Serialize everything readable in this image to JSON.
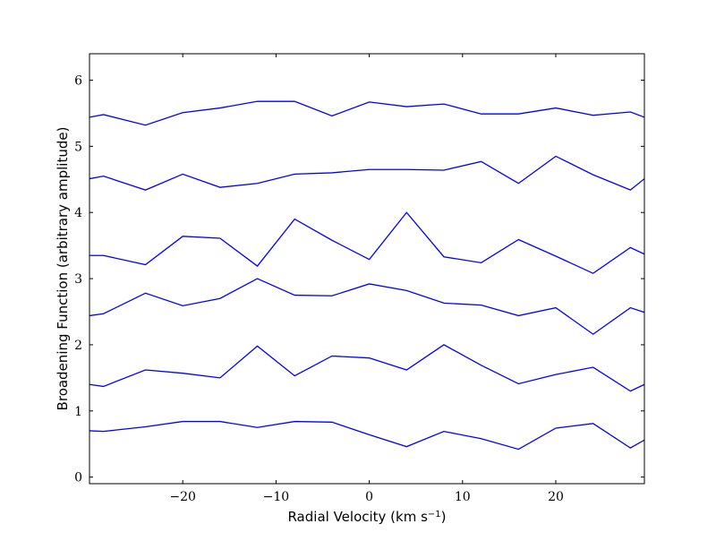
{
  "chart_data": {
    "type": "line",
    "title": "",
    "xlabel_main": "Radial Velocity (km s",
    "xlabel_sup": "−1",
    "xlabel_close": ")",
    "ylabel": "Broadening Function (arbitrary amplitude)",
    "xlim": [
      -30,
      29.5
    ],
    "ylim": [
      -0.1,
      6.4
    ],
    "xticks": [
      -20,
      -10,
      0,
      10,
      20
    ],
    "xtick_labels": [
      "−20",
      "−10",
      "0",
      "10",
      "20"
    ],
    "yticks": [
      0,
      1,
      2,
      3,
      4,
      5,
      6
    ],
    "ytick_labels": [
      "0",
      "1",
      "2",
      "3",
      "4",
      "5",
      "6"
    ],
    "grid": false,
    "line_color": "#0000ff",
    "x": [
      -30,
      -28.5,
      -24,
      -20,
      -16,
      -12,
      -8,
      -4,
      0,
      4,
      8,
      12,
      16,
      20,
      24,
      28,
      29.5
    ],
    "series": [
      {
        "values": [
          0.7,
          0.69,
          0.76,
          0.84,
          0.84,
          0.75,
          0.84,
          0.83,
          0.64,
          0.46,
          0.69,
          0.58,
          0.42,
          0.74,
          0.81,
          0.44,
          0.56
        ]
      },
      {
        "values": [
          1.4,
          1.37,
          1.62,
          1.57,
          1.5,
          1.98,
          1.53,
          1.83,
          1.8,
          1.62,
          2.0,
          1.69,
          1.41,
          1.55,
          1.66,
          1.3,
          1.4
        ]
      },
      {
        "values": [
          2.44,
          2.47,
          2.78,
          2.59,
          2.7,
          3.0,
          2.75,
          2.74,
          2.92,
          2.82,
          2.63,
          2.6,
          2.44,
          2.56,
          2.16,
          2.56,
          2.49
        ]
      },
      {
        "values": [
          3.35,
          3.35,
          3.21,
          3.64,
          3.61,
          3.19,
          3.9,
          3.58,
          3.29,
          4.0,
          3.33,
          3.24,
          3.59,
          3.34,
          3.08,
          3.47,
          3.37
        ]
      },
      {
        "values": [
          4.51,
          4.55,
          4.34,
          4.58,
          4.38,
          4.44,
          4.58,
          4.6,
          4.65,
          4.65,
          4.64,
          4.77,
          4.44,
          4.85,
          4.57,
          4.34,
          4.51
        ]
      },
      {
        "values": [
          5.44,
          5.48,
          5.32,
          5.51,
          5.58,
          5.68,
          5.68,
          5.46,
          5.67,
          5.6,
          5.64,
          5.49,
          5.49,
          5.58,
          5.47,
          5.52,
          5.44
        ]
      }
    ]
  }
}
